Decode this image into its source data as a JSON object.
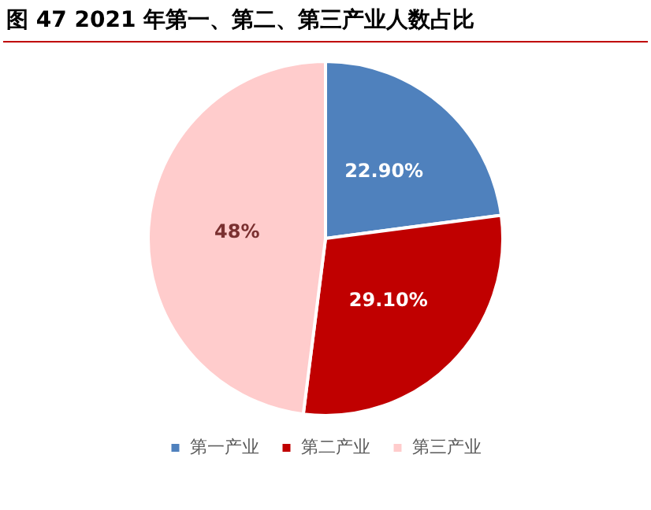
{
  "chart_data": {
    "type": "pie",
    "title": "图 47  2021 年第一、第二、第三产业人数占比",
    "categories": [
      "第一产业",
      "第二产业",
      "第三产业"
    ],
    "values": [
      22.9,
      29.1,
      48
    ],
    "value_labels": [
      "22.90%",
      "29.10%",
      "48%"
    ],
    "colors": [
      "#4f81bd",
      "#c00000",
      "#ffcccc"
    ],
    "legend": "bottom"
  }
}
